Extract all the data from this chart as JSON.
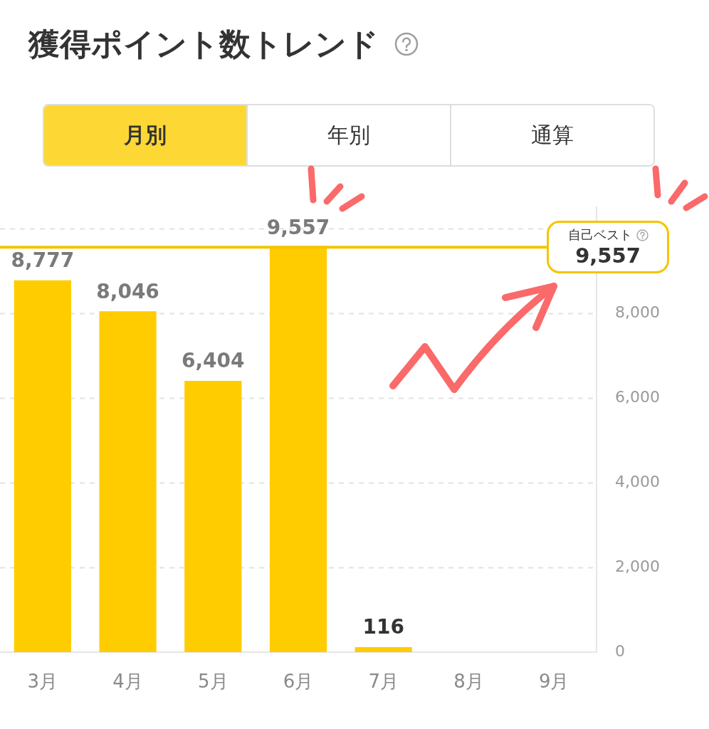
{
  "chart_data": {
    "type": "bar",
    "title": "獲得ポイント数トレンド",
    "categories": [
      "3月",
      "4月",
      "5月",
      "6月",
      "7月",
      "8月",
      "9月"
    ],
    "values": [
      8777,
      8046,
      6404,
      9557,
      116,
      null,
      null
    ],
    "color": "#ffcc00",
    "value_labels": [
      "8,777",
      "8,046",
      "6,404",
      "9,557",
      "116",
      null,
      null
    ],
    "ylim": [
      0,
      10500
    ],
    "yticks": [
      0,
      {
        "value": 2000,
        "label": "2,000"
      },
      {
        "value": 4000,
        "label": "4,000"
      },
      {
        "value": 6000,
        "label": "6,000"
      },
      {
        "value": 8000,
        "label": "8,000"
      },
      {
        "value": 10000,
        "label": null
      }
    ],
    "grid": "y",
    "ref_lines": [
      {
        "axis": "y",
        "value": 9557,
        "label": "自己ベスト",
        "color": "#f5c400"
      }
    ],
    "annotations": [
      "月別",
      "年別",
      "通算",
      "9,557"
    ]
  }
}
